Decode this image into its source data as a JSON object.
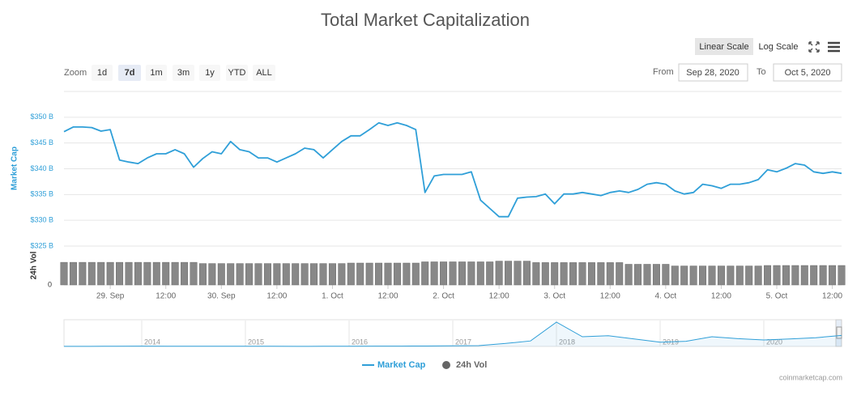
{
  "chart_data": {
    "type": "line",
    "title": "Total Market Capitalization",
    "scale_buttons": [
      "Linear Scale",
      "Log Scale"
    ],
    "active_scale": 0,
    "zoom_label": "Zoom",
    "zoom_buttons": [
      "1d",
      "7d",
      "1m",
      "3m",
      "1y",
      "YTD",
      "ALL"
    ],
    "active_zoom": 1,
    "from_label": "From",
    "from": "Sep 28, 2020",
    "to_label": "To",
    "to": "Oct 5, 2020",
    "ylabel": "Market Cap",
    "y2label": "24h Vol",
    "categories": [
      null,
      null,
      null,
      null,
      null,
      "29. Sep",
      null,
      null,
      null,
      null,
      null,
      "12:00",
      null,
      null,
      null,
      null,
      null,
      "30. Sep",
      null,
      null,
      null,
      null,
      null,
      "12:00",
      null,
      null,
      null,
      null,
      null,
      "1. Oct",
      null,
      null,
      null,
      null,
      null,
      "12:00",
      null,
      null,
      null,
      null,
      null,
      "2. Oct",
      null,
      null,
      null,
      null,
      null,
      "12:00",
      null,
      null,
      null,
      null,
      null,
      "3. Oct",
      null,
      null,
      null,
      null,
      null,
      "12:00",
      null,
      null,
      null,
      null,
      null,
      "4. Oct",
      null,
      null,
      null,
      null,
      null,
      "12:00",
      null,
      null,
      null,
      null,
      null,
      "5. Oct",
      null,
      null,
      null,
      null,
      null,
      "12:00",
      null
    ],
    "ylim": [
      325,
      355
    ],
    "yticks": [
      {
        "value": 325,
        "label": "$325 B"
      },
      {
        "value": 330,
        "label": "$330 B"
      },
      {
        "value": 335,
        "label": "$335 B"
      },
      {
        "value": 340,
        "label": "$340 B"
      },
      {
        "value": 345,
        "label": "$345 B"
      },
      {
        "value": 350,
        "label": "$350 B"
      }
    ],
    "y2lim": [
      0,
      160
    ],
    "y2ticks": [
      0
    ],
    "grid": true,
    "series": [
      {
        "name": "Market Cap",
        "color": "#2f9fd8",
        "values": [
          347.2,
          348.1,
          348.1,
          348,
          347.3,
          347.6,
          341.7,
          341.3,
          341,
          342.1,
          342.9,
          342.9,
          343.7,
          342.9,
          340.3,
          342,
          343.3,
          342.9,
          345.3,
          343.7,
          343.3,
          342.1,
          342.1,
          341.3,
          342.1,
          342.9,
          344,
          343.7,
          342.1,
          343.7,
          345.3,
          346.4,
          346.4,
          347.6,
          348.9,
          348.4,
          348.9,
          348.4,
          347.6,
          335.4,
          338.6,
          338.9,
          338.9,
          338.9,
          339.4,
          333.9,
          332.3,
          330.7,
          330.7,
          334.3,
          334.5,
          334.6,
          335.1,
          333.2,
          335.1,
          335.1,
          335.4,
          335.1,
          334.8,
          335.4,
          335.7,
          335.4,
          336,
          337,
          337.3,
          337,
          335.7,
          335.1,
          335.4,
          337,
          336.7,
          336.2,
          337,
          337,
          337.3,
          337.9,
          339.8,
          339.4,
          340.1,
          341,
          340.7,
          339.4,
          339.1,
          339.4,
          339.1
        ]
      },
      {
        "name": "24h Vol",
        "color": "#666666",
        "axis": "y2",
        "values": [
          93,
          93,
          93,
          93,
          93,
          93,
          93,
          93,
          93,
          93,
          93,
          93,
          93,
          93,
          93,
          88,
          88,
          88,
          88,
          88,
          88,
          88,
          88,
          88,
          88,
          88,
          88,
          88,
          88,
          88,
          88,
          90,
          90,
          90,
          90,
          90,
          90,
          90,
          90,
          95,
          95,
          95,
          95,
          95,
          95,
          95,
          95,
          98,
          98,
          98,
          98,
          92,
          92,
          92,
          92,
          92,
          92,
          92,
          92,
          92,
          92,
          85,
          85,
          85,
          85,
          85,
          78,
          78,
          78,
          78,
          78,
          78,
          78,
          78,
          78,
          78,
          80,
          80,
          80,
          80,
          80,
          80,
          80,
          80,
          80
        ]
      }
    ],
    "navigator": {
      "categories": [
        null,
        null,
        null,
        "2014",
        null,
        null,
        null,
        "2015",
        null,
        null,
        null,
        "2016",
        null,
        null,
        null,
        "2017",
        null,
        null,
        null,
        "2018",
        null,
        null,
        null,
        "2019",
        null,
        null,
        null,
        "2020",
        null,
        null,
        null
      ],
      "values": [
        1.5,
        2,
        8,
        10,
        8,
        8,
        7,
        5,
        4,
        3,
        4,
        7,
        9,
        10,
        12,
        17,
        25,
        90,
        170,
        750,
        300,
        330,
        230,
        130,
        160,
        300,
        240,
        200,
        230,
        270,
        340
      ],
      "ylim": [
        0,
        800
      ]
    },
    "credits": "coinmarketcap.com"
  }
}
